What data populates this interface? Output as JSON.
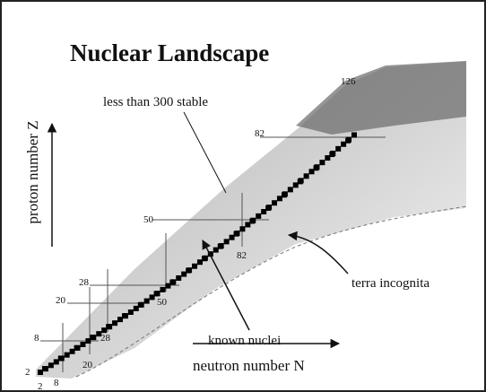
{
  "title": "Nuclear Landscape",
  "axes": {
    "y_label": "proton number Z",
    "x_label": "neutron number N"
  },
  "annotations": {
    "stable": "less than 300 stable",
    "known": "known nuclei",
    "unknown": "terra incognita"
  },
  "proton_magic": [
    "126",
    "82",
    "50",
    "28",
    "20",
    "8",
    "2"
  ],
  "neutron_magic": [
    "2",
    "8",
    "20",
    "28",
    "50",
    "82"
  ]
}
